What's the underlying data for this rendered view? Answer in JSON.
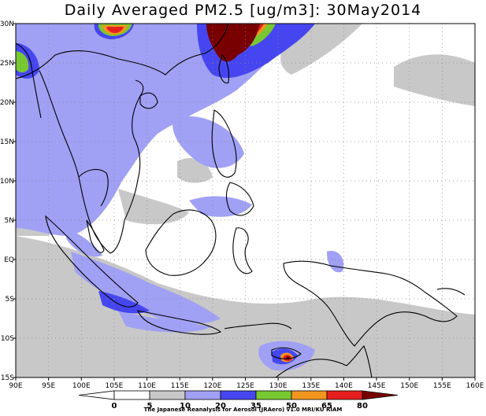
{
  "title": "Daily Averaged PM2.5 [ug/m3]: 30May2014",
  "credit": "The Japanese Reanalysis for Aerosol (JRAero) v1.0 MRI/KU RIAM",
  "map": {
    "lon_range": [
      90,
      160
    ],
    "lat_range": [
      -15,
      30
    ],
    "lon_ticks": [
      "90E",
      "95E",
      "100E",
      "105E",
      "110E",
      "115E",
      "120E",
      "125E",
      "130E",
      "135E",
      "140E",
      "145E",
      "150E",
      "155E",
      "160E"
    ],
    "lat_ticks": [
      "15S",
      "10S",
      "5S",
      "EQ",
      "5N",
      "10N",
      "15N",
      "20N",
      "25N",
      "30N"
    ],
    "grid": true,
    "grid_style": "dotted"
  },
  "colorbar": {
    "levels": [
      "0",
      "5",
      "10",
      "20",
      "35",
      "50",
      "65",
      "80"
    ],
    "colors": [
      "#ffffff",
      "#ffffff",
      "#c8c8c8",
      "#a0a0f5",
      "#4646f0",
      "#78c832",
      "#f0961e",
      "#e61e1e",
      "#780000"
    ]
  }
}
